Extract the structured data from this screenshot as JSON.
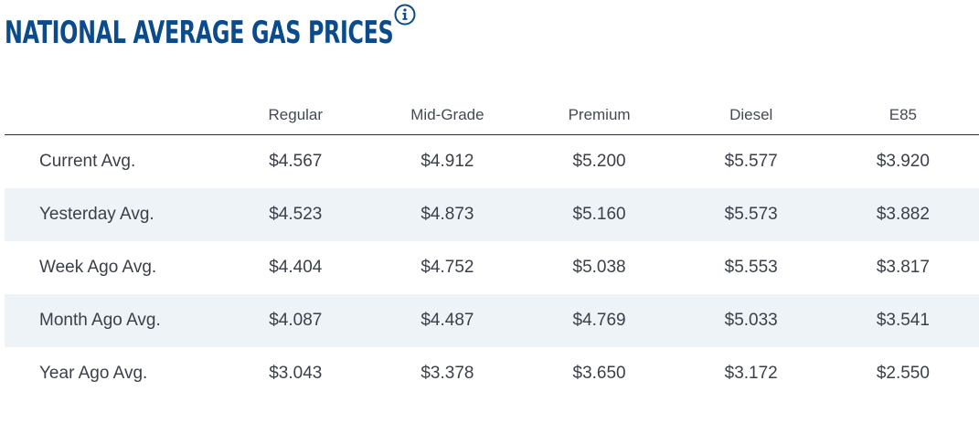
{
  "header": {
    "title": "NATIONAL AVERAGE GAS PRICES",
    "info_icon": "info-icon"
  },
  "table": {
    "columns": [
      "",
      "Regular",
      "Mid-Grade",
      "Premium",
      "Diesel",
      "E85"
    ],
    "rows": [
      {
        "label": "Current Avg.",
        "values": [
          "$4.567",
          "$4.912",
          "$5.200",
          "$5.577",
          "$3.920"
        ]
      },
      {
        "label": "Yesterday Avg.",
        "values": [
          "$4.523",
          "$4.873",
          "$5.160",
          "$5.573",
          "$3.882"
        ]
      },
      {
        "label": "Week Ago Avg.",
        "values": [
          "$4.404",
          "$4.752",
          "$5.038",
          "$5.553",
          "$3.817"
        ]
      },
      {
        "label": "Month Ago Avg.",
        "values": [
          "$4.087",
          "$4.487",
          "$4.769",
          "$5.033",
          "$3.541"
        ]
      },
      {
        "label": "Year Ago Avg.",
        "values": [
          "$3.043",
          "$3.378",
          "$3.650",
          "$3.172",
          "$2.550"
        ]
      }
    ]
  },
  "colors": {
    "title": "#0b4a8b",
    "alt_row": "#eef3f8",
    "text": "#3a3f4a"
  }
}
